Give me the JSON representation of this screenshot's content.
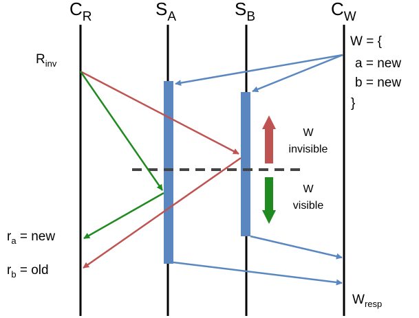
{
  "actors": {
    "cr": {
      "base": "C",
      "sub": "R"
    },
    "sa": {
      "base": "S",
      "sub": "A"
    },
    "sb": {
      "base": "S",
      "sub": "B"
    },
    "cw": {
      "base": "C",
      "sub": "W"
    }
  },
  "labels": {
    "rinv": {
      "base": "R",
      "sub": "inv"
    },
    "wresp": {
      "base": "W",
      "sub": "resp"
    },
    "ra": {
      "base": "r",
      "sub": "a",
      "rest": " = new"
    },
    "rb": {
      "base": "r",
      "sub": "b",
      "rest": " = old"
    }
  },
  "write_set": {
    "line1": "W = {",
    "line2": "a = new",
    "line3": "b = new",
    "line4": "}"
  },
  "visibility": {
    "invisible": {
      "line1": "W",
      "line2": "invisible"
    },
    "visible": {
      "line1": "W",
      "line2": "visible"
    }
  },
  "colors": {
    "blue": "#5b87c0",
    "red": "#bf5352",
    "green": "#1f8a1f",
    "dash": "#444444"
  }
}
